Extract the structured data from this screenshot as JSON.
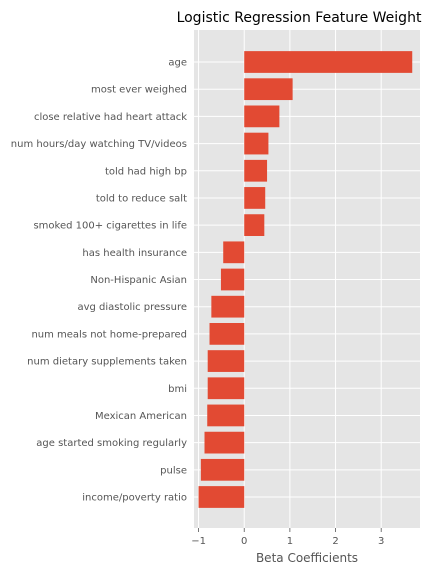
{
  "chart_data": {
    "type": "bar",
    "orientation": "horizontal",
    "title": "Logistic Regression Feature Weight",
    "xlabel": "Beta Coefficients",
    "ylabel": "",
    "xlim": [
      -1.1,
      3.85
    ],
    "xticks": [
      -1,
      0,
      1,
      2,
      3
    ],
    "grid": true,
    "categories": [
      "age",
      "most ever weighed",
      "close relative had heart attack",
      "num hours/day watching TV/videos",
      "told had high bp",
      "told to reduce salt",
      "smoked 100+ cigarettes in life",
      "has health insurance",
      "Non-Hispanic Asian",
      "avg diastolic pressure",
      "num meals not home-prepared",
      "num dietary supplements taken",
      "bmi",
      "Mexican American",
      "age started smoking regularly",
      "pulse",
      "income/poverty ratio"
    ],
    "values": [
      3.68,
      1.06,
      0.77,
      0.53,
      0.5,
      0.46,
      0.44,
      -0.46,
      -0.51,
      -0.72,
      -0.76,
      -0.8,
      -0.8,
      -0.81,
      -0.87,
      -0.95,
      -1.0
    ],
    "bar_color": "#E24A33",
    "background_color": "#E5E5E5",
    "grid_color": "#FFFFFF"
  }
}
